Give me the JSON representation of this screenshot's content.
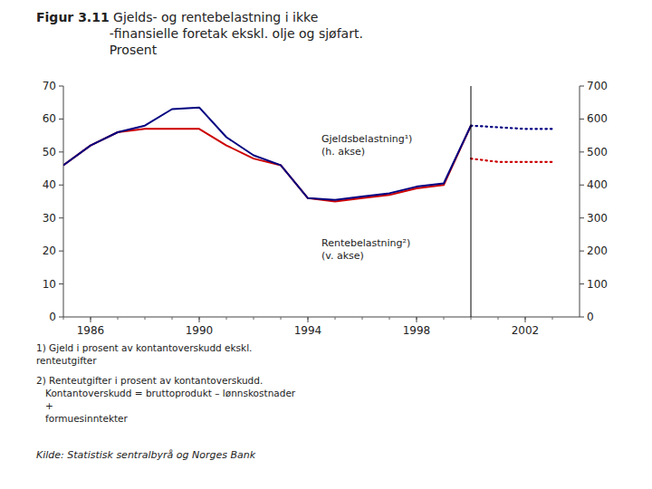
{
  "chart_data": {
    "type": "line",
    "title": "Figur 3.11",
    "subtitle": " Gjelds- og rentebelastning i ikke\n-finansielle foretak ekskl. olje og sjøfart.\nProsent",
    "xlim": [
      1985,
      2004
    ],
    "xticks": [
      1986,
      1990,
      1994,
      1998,
      2002
    ],
    "xticks_minor": [
      1985,
      1986,
      1987,
      1988,
      1989,
      1990,
      1991,
      1992,
      1993,
      1994,
      1995,
      1996,
      1997,
      1998,
      1999,
      2000,
      2001,
      2002,
      2003
    ],
    "ylim": [
      0,
      70
    ],
    "yticks": [
      0,
      10,
      20,
      30,
      40,
      50,
      60,
      70
    ],
    "y2lim": [
      0,
      700
    ],
    "y2ticks": [
      0,
      100,
      200,
      300,
      400,
      500,
      600,
      700
    ],
    "grid": false,
    "vertical_line": 2000,
    "series": [
      {
        "x": [
          1985,
          1986,
          1987,
          1988,
          1989,
          1990,
          1991,
          1992,
          1993,
          1994,
          1995,
          1996,
          1997,
          1998,
          1999,
          2000
        ],
        "values": [
          46,
          52,
          56,
          57,
          57,
          57,
          52,
          48,
          46,
          36,
          35,
          36,
          37,
          39,
          40,
          58
        ],
        "color": "#cc0000",
        "line_style": "solid"
      },
      {
        "x": [
          2000,
          2001,
          2002,
          2003
        ],
        "values": [
          48,
          47,
          47,
          47
        ],
        "color": "#cc0000",
        "line_style": "dotted"
      },
      {
        "x": [
          1985,
          1986,
          1987,
          1988,
          1989,
          1990,
          1991,
          1992,
          1993,
          1994,
          1995,
          1996,
          1997,
          1998,
          1999,
          2000
        ],
        "values": [
          460,
          520,
          560,
          580,
          630,
          635,
          545,
          490,
          460,
          360,
          355,
          365,
          375,
          395,
          405,
          580
        ],
        "color": "#000080",
        "line_style": "solid",
        "axis": "y2"
      },
      {
        "x": [
          2000,
          2001,
          2002,
          2003
        ],
        "values": [
          580,
          575,
          570,
          570
        ],
        "color": "#000080",
        "line_style": "dotted",
        "axis": "y2"
      }
    ],
    "annotations": [
      "Gjeldsbelastning¹)\n(h. akse)",
      "Rentebelastning²)\n(v. akse)"
    ],
    "footnotes": [
      "1) Gjeld i prosent av kontantoverskudd ekskl.\nrenteutgifter",
      "2) Renteutgifter i prosent av kontantoverskudd.\n   Kontantoverskudd = bruttoprodukt – lønnskostnader\n   +\n   formuesinntekter"
    ],
    "source": "Kilde: Statistisk sentralbyrå og Norges Bank"
  }
}
